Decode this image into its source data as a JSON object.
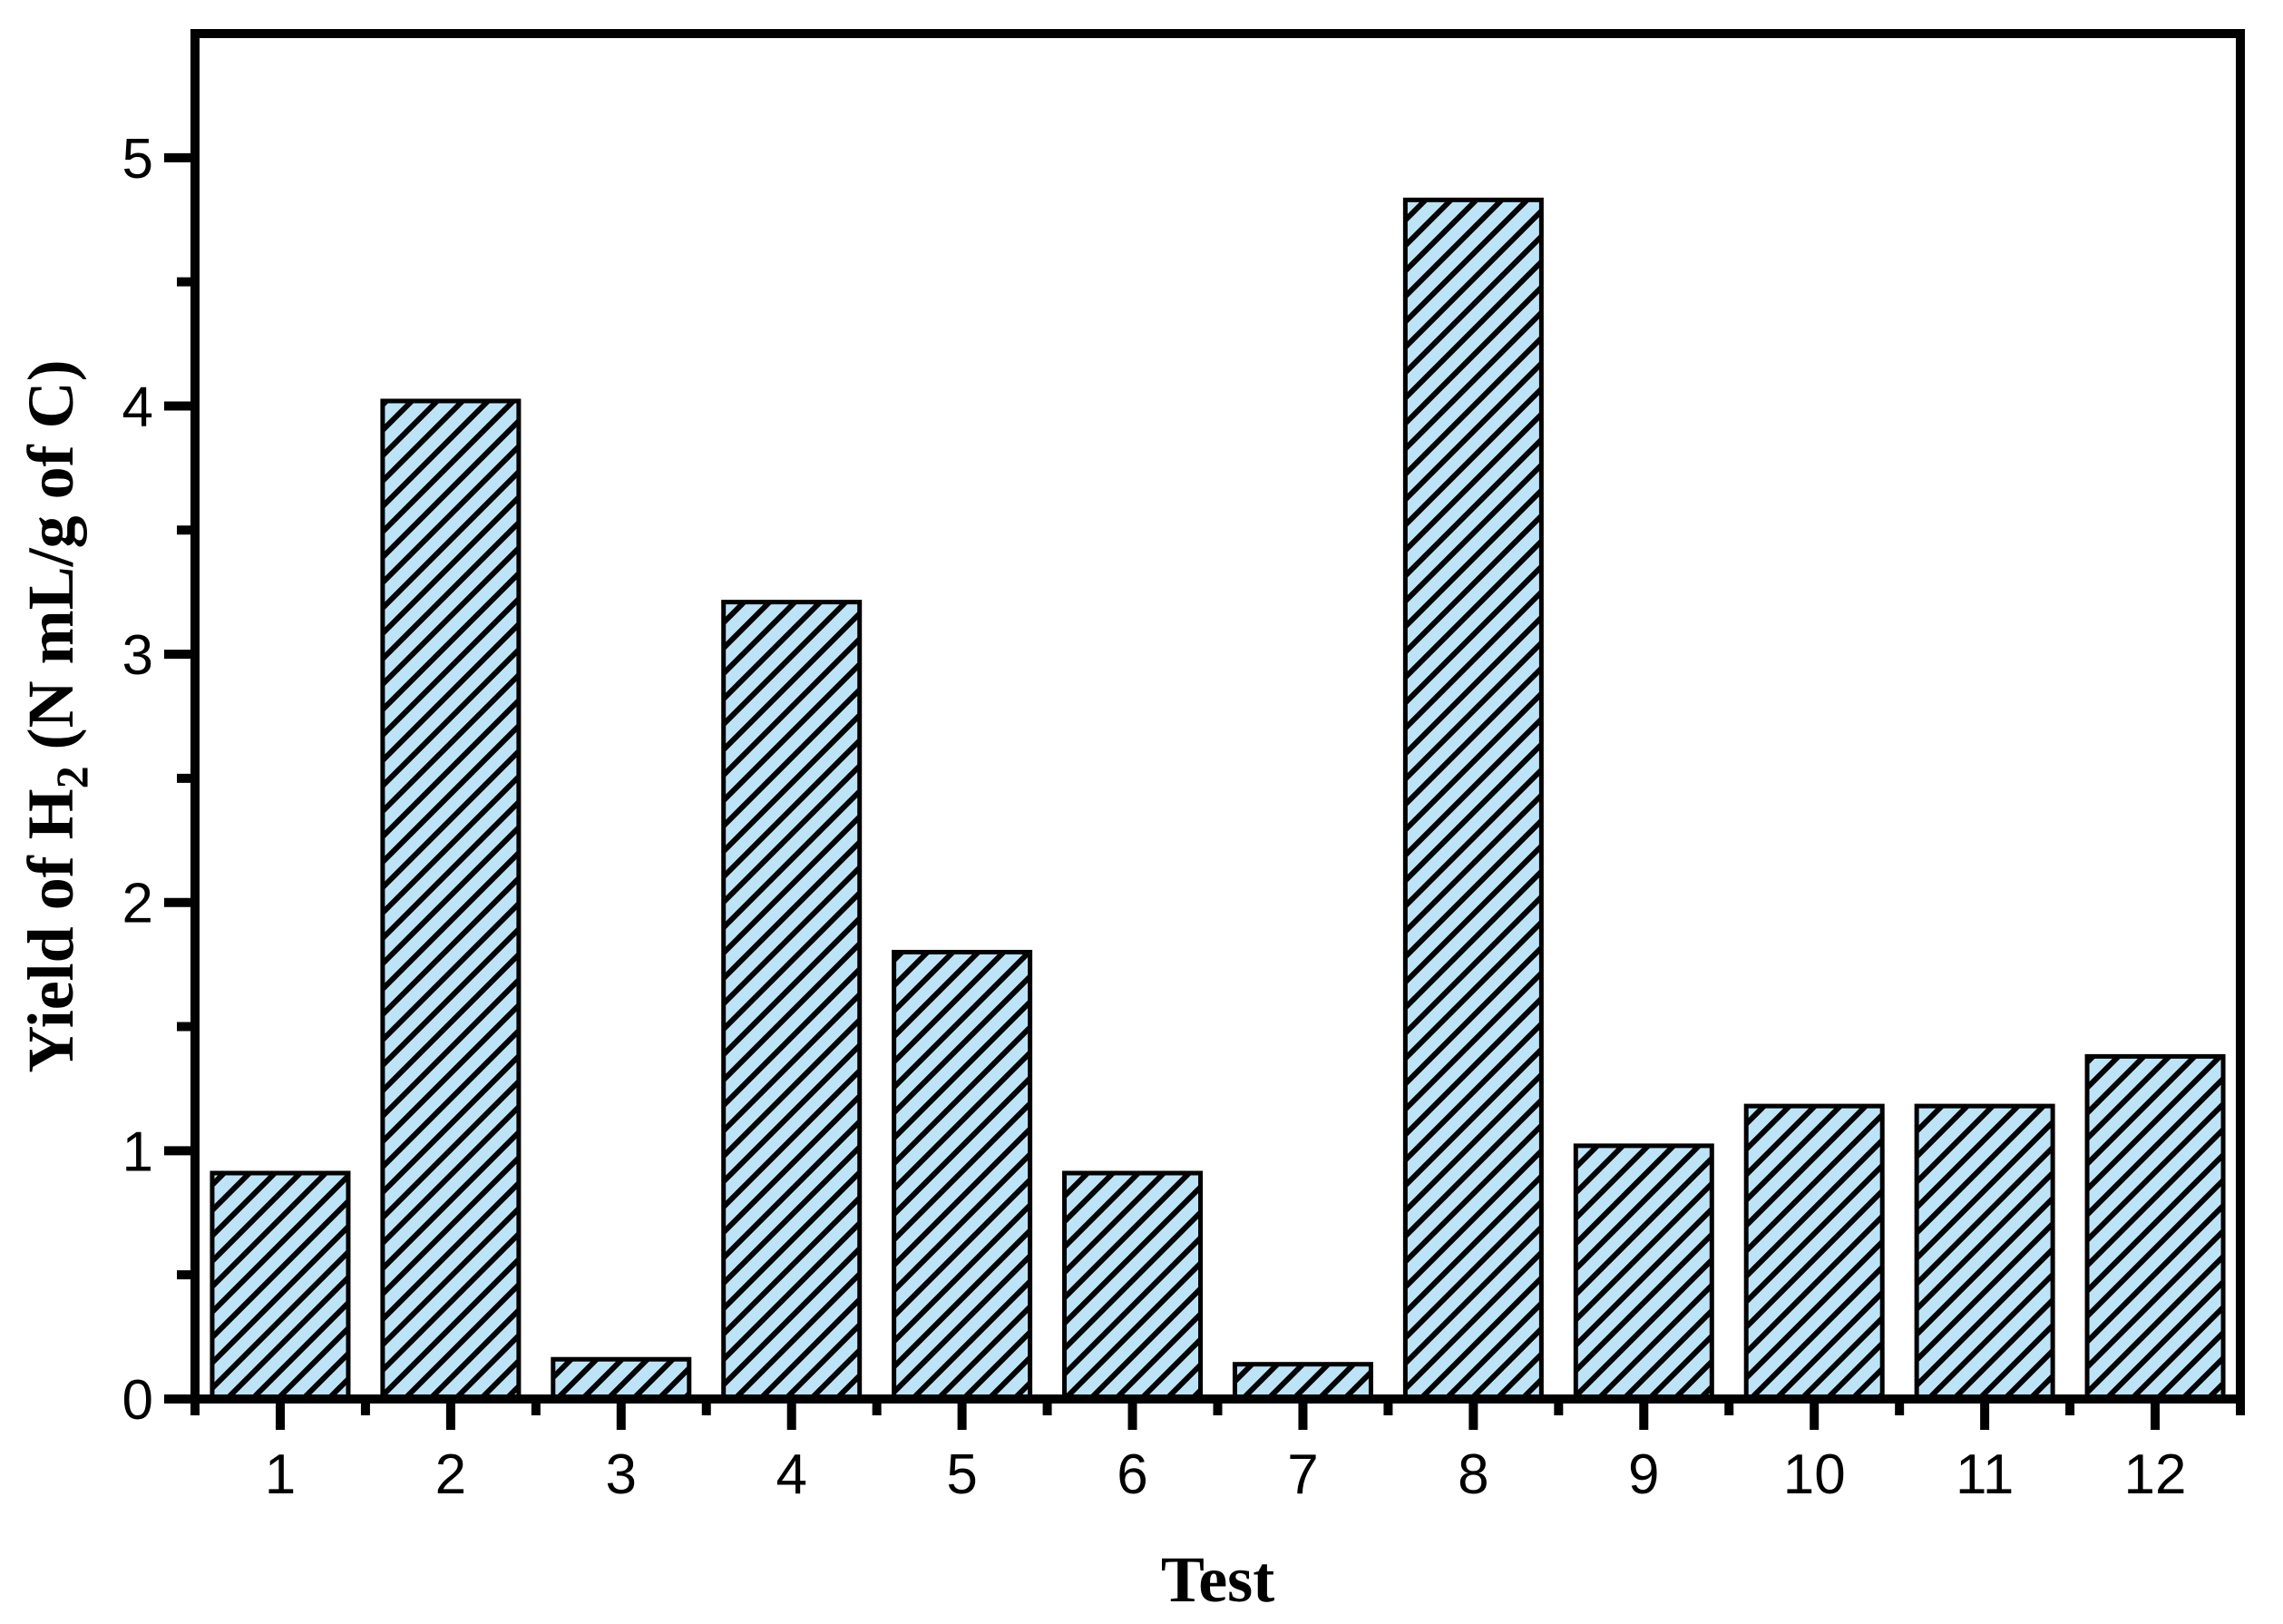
{
  "chart_data": {
    "type": "bar",
    "title": "",
    "xlabel": "Test",
    "ylabel": "Yield of H2 (N mL/g of C)",
    "ylabel_parts": {
      "prefix": "Yield of H",
      "subscript": "2",
      "suffix": " (N mL/g of C)"
    },
    "categories": [
      "1",
      "2",
      "3",
      "4",
      "5",
      "6",
      "7",
      "8",
      "9",
      "10",
      "11",
      "12"
    ],
    "values": [
      0.91,
      4.02,
      0.16,
      3.21,
      1.8,
      0.91,
      0.14,
      4.83,
      1.02,
      1.18,
      1.18,
      1.38
    ],
    "series_name": "Yield of H2",
    "ylim": [
      0,
      5.5
    ],
    "y_major_ticks": [
      0,
      1,
      2,
      3,
      4,
      5
    ],
    "y_minor_step": 0.5,
    "x_minor_ticks_between_categories": true,
    "grid": false,
    "legend_position": "none",
    "bar_fill_color": "#BDE3F7",
    "bar_edge_color": "#000000",
    "bar_hatch_style": "forward-diagonal",
    "hatch_color": "#000000",
    "axis_color": "#000000",
    "text_color": "#000000",
    "background_color": "#FFFFFF"
  }
}
